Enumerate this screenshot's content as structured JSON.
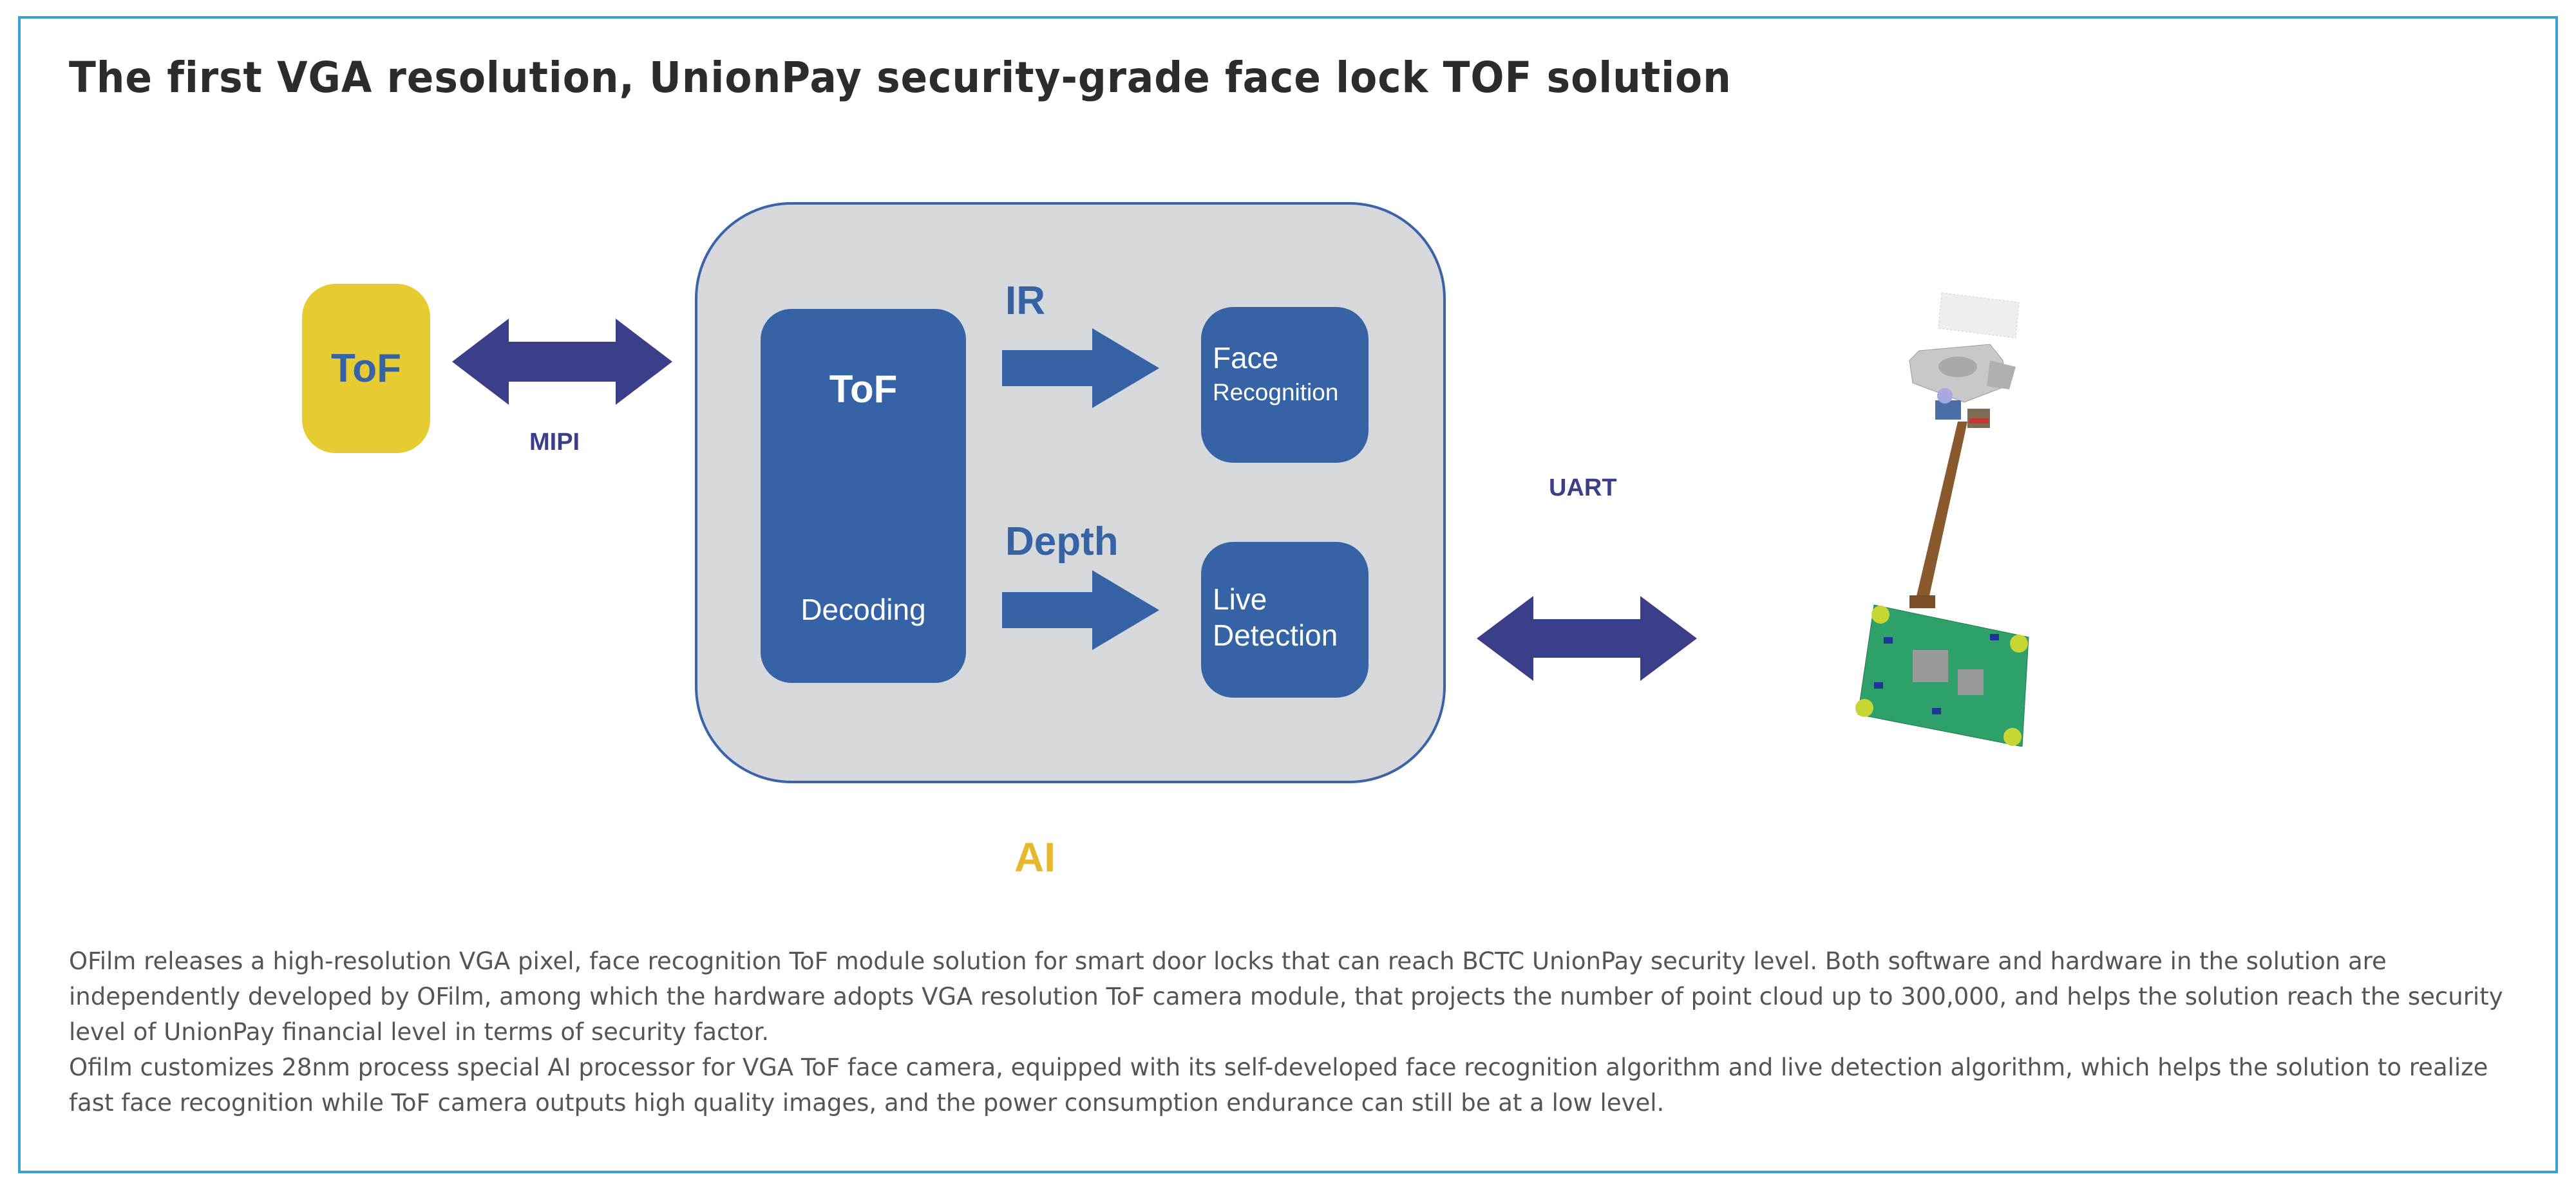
{
  "title": "The first VGA resolution, UnionPay security-grade face lock TOF solution",
  "diagram": {
    "sensor_label": "ToF",
    "mipi_label": "MIPI",
    "ai_label": "AI",
    "decoder": {
      "title": "ToF",
      "subtitle": "Decoding"
    },
    "ir_label": "IR",
    "depth_label": "Depth",
    "face_recognition": {
      "line1": "Face",
      "line2": "Recognition"
    },
    "live_detection": {
      "line1": "Live",
      "line2": "Detection"
    },
    "uart_label": "UART",
    "colors": {
      "sensor": "#e6cb33",
      "block": "#3563a5",
      "ai_panel": "#d6d8db",
      "link_arrow": "#3b3f8a",
      "ai_label": "#e6b82e",
      "frame": "#3aa0d8"
    }
  },
  "description": {
    "paragraph1": "OFilm releases a high-resolution VGA pixel, face recognition ToF module solution for smart door locks that can reach BCTC UnionPay security level. Both software and hardware in the solution are independently developed by OFilm, among which the hardware adopts VGA resolution ToF camera module, that projects the number of point cloud up to 300,000, and helps the solution reach the security level of UnionPay financial level in terms of security factor.",
    "paragraph2": "Ofilm customizes 28nm process special AI processor for VGA ToF face camera, equipped with its self-developed face recognition algorithm and live detection algorithm, which helps the solution to realize fast face recognition while ToF camera outputs high quality images, and the power consumption endurance can still be at a low level."
  }
}
